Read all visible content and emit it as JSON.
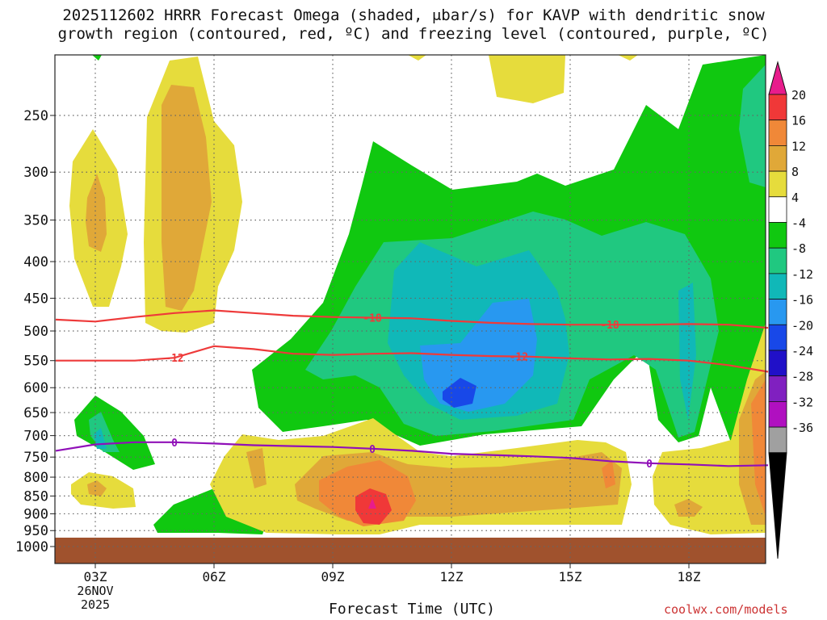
{
  "chart_data": {
    "type": "heatmap",
    "title_line1": "2025112602 HRRR Forecast Omega (shaded, μbar/s) for KAVP with dendritic snow",
    "title_line2": "growth region (contoured, red, ºC) and freezing level (contoured, purple, ºC)",
    "xlabel": "Forecast Time (UTC)",
    "credit": "coolwx.com/models",
    "x_ticks": [
      "03Z",
      "06Z",
      "09Z",
      "12Z",
      "15Z",
      "18Z"
    ],
    "x_tick_hours": [
      3,
      6,
      9,
      12,
      15,
      18
    ],
    "x_date_line1": "26NOV",
    "x_date_line2": "2025",
    "x_range_hours": [
      2,
      20
    ],
    "y_ticks": [
      "250",
      "300",
      "350",
      "400",
      "450",
      "500",
      "550",
      "600",
      "650",
      "700",
      "750",
      "800",
      "850",
      "900",
      "950",
      "1000"
    ],
    "y_tick_values": [
      250,
      300,
      350,
      400,
      450,
      500,
      550,
      600,
      650,
      700,
      750,
      800,
      850,
      900,
      950,
      1000
    ],
    "y_range_hpa": [
      200,
      1000
    ],
    "y_scale": "log-pressure",
    "grid": true,
    "colorbar_labels": [
      "20",
      "16",
      "12",
      "8",
      "4",
      "-4",
      "-8",
      "-12",
      "-16",
      "-20",
      "-24",
      "-28",
      "-32",
      "-36"
    ],
    "colorbar_colors": [
      "#f03838",
      "#f08838",
      "#e0a838",
      "#e6dc3c",
      "#ffffff",
      "#10c810",
      "#20c880",
      "#10b8b8",
      "#2898f0",
      "#1848e8",
      "#2010c8",
      "#8020c0",
      "#b010c0",
      "#a0a0a0"
    ],
    "colorbar_top_color": "#e81c8c",
    "colorbar_bottom_color": "#000000",
    "ground_color": "#a0522d",
    "isotherms": [
      {
        "label": "-18",
        "color": "#ee3a3a",
        "hours": [
          2,
          3,
          4,
          5,
          6,
          7,
          8,
          9,
          10,
          11,
          12,
          13,
          14,
          15,
          16,
          17,
          18,
          19,
          20
        ],
        "hpa": [
          482,
          485,
          478,
          472,
          468,
          472,
          476,
          478,
          479,
          480,
          484,
          487,
          489,
          490,
          490,
          490,
          489,
          490,
          495
        ]
      },
      {
        "label": "-12",
        "color": "#ee3a3a",
        "hours": [
          2,
          3,
          4,
          5,
          6,
          7,
          8,
          9,
          10,
          11,
          12,
          13,
          14,
          15,
          16,
          17,
          18,
          19,
          20
        ],
        "hpa": [
          550,
          550,
          550,
          545,
          525,
          530,
          538,
          540,
          538,
          537,
          540,
          542,
          543,
          546,
          548,
          547,
          550,
          558,
          570
        ]
      },
      {
        "label": "0",
        "color": "#9010b8",
        "hours": [
          2,
          3,
          4,
          5,
          6,
          7,
          8,
          9,
          10,
          11,
          12,
          13,
          14,
          15,
          16,
          17,
          18,
          19,
          20
        ],
        "hpa": [
          735,
          720,
          715,
          715,
          718,
          722,
          724,
          726,
          730,
          735,
          742,
          745,
          748,
          752,
          760,
          765,
          768,
          772,
          770
        ]
      }
    ],
    "shaded_regions": [
      {
        "omega": "4 to 8",
        "color": "#e6dc3c"
      },
      {
        "omega": "8 to 12",
        "color": "#e0a838"
      },
      {
        "omega": "12 to 16",
        "color": "#f08838"
      },
      {
        "omega": "16 to 20",
        "color": "#f03838"
      },
      {
        "omega": ">20",
        "color": "#e81c8c"
      },
      {
        "omega": "-4 to -8",
        "color": "#10c810"
      },
      {
        "omega": "-8 to -12",
        "color": "#20c880"
      },
      {
        "omega": "-12 to -16",
        "color": "#10b8b8"
      },
      {
        "omega": "-16 to -20",
        "color": "#2898f0"
      },
      {
        "omega": "-20 to -24",
        "color": "#1848e8"
      }
    ]
  }
}
